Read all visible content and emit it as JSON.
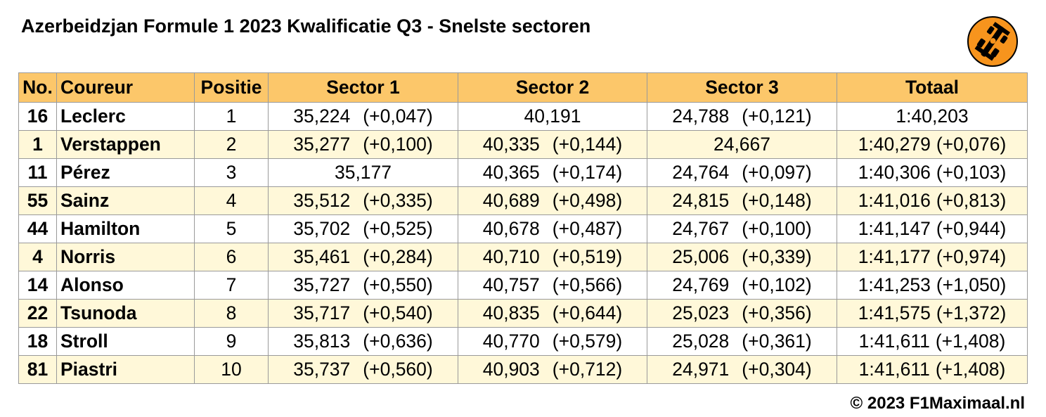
{
  "title": "Azerbeidzjan Formule 1 2023 Kwalificatie Q3 - Snelste sectoren",
  "logo": {
    "icon": "f1-car-icon",
    "color": "#f7941d"
  },
  "colors": {
    "header_bg": "#fcc76a",
    "alt_row_bg": "#fff8d9",
    "border": "#9a9a9a"
  },
  "headers": {
    "no": "No.",
    "driver": "Coureur",
    "position": "Positie",
    "sector1": "Sector 1",
    "sector2": "Sector 2",
    "sector3": "Sector 3",
    "total": "Totaal"
  },
  "rows": [
    {
      "no": "16",
      "driver": "Leclerc",
      "position": "1",
      "s1": "35,224",
      "s1d": "(+0,047)",
      "s2": "40,191",
      "s2d": "",
      "s3": "24,788",
      "s3d": "(+0,121)",
      "tot": "1:40,203",
      "totd": ""
    },
    {
      "no": "1",
      "driver": "Verstappen",
      "position": "2",
      "s1": "35,277",
      "s1d": "(+0,100)",
      "s2": "40,335",
      "s2d": "(+0,144)",
      "s3": "24,667",
      "s3d": "",
      "tot": "1:40,279",
      "totd": "(+0,076)"
    },
    {
      "no": "11",
      "driver": "Pérez",
      "position": "3",
      "s1": "35,177",
      "s1d": "",
      "s2": "40,365",
      "s2d": "(+0,174)",
      "s3": "24,764",
      "s3d": "(+0,097)",
      "tot": "1:40,306",
      "totd": "(+0,103)"
    },
    {
      "no": "55",
      "driver": "Sainz",
      "position": "4",
      "s1": "35,512",
      "s1d": "(+0,335)",
      "s2": "40,689",
      "s2d": "(+0,498)",
      "s3": "24,815",
      "s3d": "(+0,148)",
      "tot": "1:41,016",
      "totd": "(+0,813)"
    },
    {
      "no": "44",
      "driver": "Hamilton",
      "position": "5",
      "s1": "35,702",
      "s1d": "(+0,525)",
      "s2": "40,678",
      "s2d": "(+0,487)",
      "s3": "24,767",
      "s3d": "(+0,100)",
      "tot": "1:41,147",
      "totd": "(+0,944)"
    },
    {
      "no": "4",
      "driver": "Norris",
      "position": "6",
      "s1": "35,461",
      "s1d": "(+0,284)",
      "s2": "40,710",
      "s2d": "(+0,519)",
      "s3": "25,006",
      "s3d": "(+0,339)",
      "tot": "1:41,177",
      "totd": "(+0,974)"
    },
    {
      "no": "14",
      "driver": "Alonso",
      "position": "7",
      "s1": "35,727",
      "s1d": "(+0,550)",
      "s2": "40,757",
      "s2d": "(+0,566)",
      "s3": "24,769",
      "s3d": "(+0,102)",
      "tot": "1:41,253",
      "totd": "(+1,050)"
    },
    {
      "no": "22",
      "driver": "Tsunoda",
      "position": "8",
      "s1": "35,717",
      "s1d": "(+0,540)",
      "s2": "40,835",
      "s2d": "(+0,644)",
      "s3": "25,023",
      "s3d": "(+0,356)",
      "tot": "1:41,575",
      "totd": "(+1,372)"
    },
    {
      "no": "18",
      "driver": "Stroll",
      "position": "9",
      "s1": "35,813",
      "s1d": "(+0,636)",
      "s2": "40,770",
      "s2d": "(+0,579)",
      "s3": "25,028",
      "s3d": "(+0,361)",
      "tot": "1:41,611",
      "totd": "(+1,408)"
    },
    {
      "no": "81",
      "driver": "Piastri",
      "position": "10",
      "s1": "35,737",
      "s1d": "(+0,560)",
      "s2": "40,903",
      "s2d": "(+0,712)",
      "s3": "24,971",
      "s3d": "(+0,304)",
      "tot": "1:41,611",
      "totd": "(+1,408)"
    }
  ],
  "footer": "© 2023 F1Maximaal.nl"
}
